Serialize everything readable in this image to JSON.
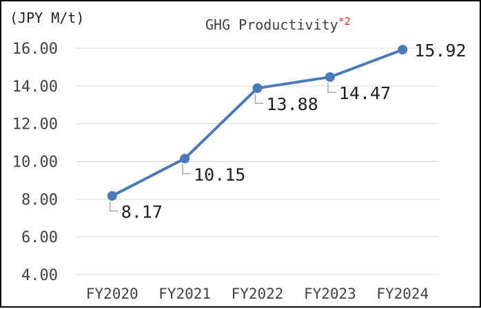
{
  "chart_data": {
    "type": "line",
    "title": "GHG Productivity",
    "title_note": "*2",
    "ylabel": "(JPY M/t)",
    "xlabel": "",
    "categories": [
      "FY2020",
      "FY2021",
      "FY2022",
      "FY2023",
      "FY2024"
    ],
    "series": [
      {
        "values": [
          8.17,
          10.15,
          13.88,
          14.47,
          15.92
        ],
        "labels": [
          "8.17",
          "10.15",
          "13.88",
          "14.47",
          "15.92"
        ],
        "color": "#4a7ab8"
      }
    ],
    "ylim": [
      4,
      16
    ],
    "yticks": [
      4,
      6,
      8,
      10,
      12,
      14,
      16
    ],
    "ytick_labels": [
      "4.00",
      "6.00",
      "8.00",
      "10.00",
      "12.00",
      "14.00",
      "16.00"
    ],
    "grid": true,
    "legend": "none"
  },
  "colors": {
    "line": "#4a7ab8",
    "grid": "#d9d9d9",
    "note": "#e03030"
  }
}
